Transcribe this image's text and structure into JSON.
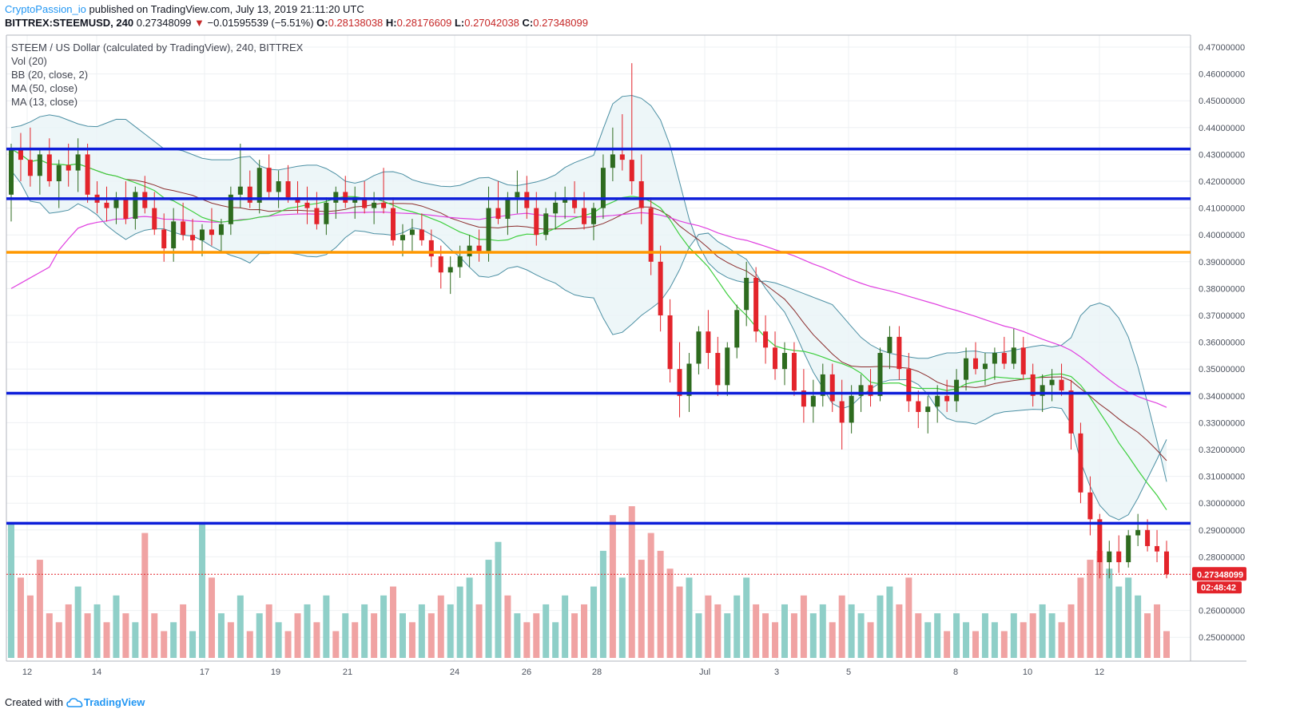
{
  "header": {
    "author": "CryptoPassion_io",
    "published": "published on TradingView.com, July 13, 2019 21:11:20 UTC",
    "symbol": "BITTREX:STEEMUSD, 240",
    "last": "0.27348099",
    "change": "−0.01595539 (−5.51%)",
    "o_label": "O:",
    "o": "0.28138038",
    "h_label": "H:",
    "h": "0.28176609",
    "l_label": "L:",
    "l": "0.27042038",
    "c_label": "C:",
    "c": "0.27348099"
  },
  "legend": [
    "STEEM / US Dollar (calculated by TradingView), 240, BITTREX",
    "Vol (20)",
    "BB (20, close, 2)",
    "MA (50, close)",
    "MA (13, close)"
  ],
  "footer": {
    "created": "Created with",
    "brand": "TradingView"
  },
  "colors": {
    "up": "#53b987",
    "up_body": "#2e6b1f",
    "down": "#eb4d5c",
    "down_body": "#e3242b",
    "vol_up": "#8fcfc8",
    "vol_down": "#f0a3a3",
    "bb": "#4b8fa3",
    "bb_fill": "#e8f4f6",
    "ma50": "#e040e0",
    "ma13": "#3ecf3e",
    "bb_mid": "#8b2d2d",
    "hline_blue": "#0d1ed9",
    "hline_orange": "#ff9800",
    "price_tag": "#e3242b"
  },
  "chart_data": {
    "type": "candlestick",
    "ylim": [
      0.245,
      0.47
    ],
    "yticks": [
      "0.47000000",
      "0.46000000",
      "0.45000000",
      "0.44000000",
      "0.43000000",
      "0.42000000",
      "0.41000000",
      "0.40000000",
      "0.39000000",
      "0.38000000",
      "0.37000000",
      "0.36000000",
      "0.35000000",
      "0.34000000",
      "0.33000000",
      "0.32000000",
      "0.31000000",
      "0.30000000",
      "0.29000000",
      "0.28000000",
      "0.26000000",
      "0.25000000"
    ],
    "xticks": [
      "12",
      "14",
      "17",
      "19",
      "21",
      "24",
      "26",
      "28",
      "Jul",
      "3",
      "5",
      "8",
      "10",
      "12"
    ],
    "horizontal_lines": [
      {
        "value": 0.432,
        "color": "blue"
      },
      {
        "value": 0.4135,
        "color": "blue"
      },
      {
        "value": 0.3935,
        "color": "orange"
      },
      {
        "value": 0.341,
        "color": "blue"
      },
      {
        "value": 0.2925,
        "color": "blue"
      }
    ],
    "last_price": "0.27348099",
    "countdown": "02:48:42",
    "ohlc": [
      [
        0.415,
        0.434,
        0.405,
        0.432
      ],
      [
        0.432,
        0.438,
        0.42,
        0.428
      ],
      [
        0.428,
        0.44,
        0.418,
        0.422
      ],
      [
        0.422,
        0.432,
        0.415,
        0.43
      ],
      [
        0.43,
        0.436,
        0.418,
        0.42
      ],
      [
        0.42,
        0.428,
        0.41,
        0.426
      ],
      [
        0.426,
        0.434,
        0.418,
        0.424
      ],
      [
        0.424,
        0.436,
        0.416,
        0.43
      ],
      [
        0.43,
        0.434,
        0.412,
        0.415
      ],
      [
        0.415,
        0.42,
        0.408,
        0.412
      ],
      [
        0.412,
        0.418,
        0.405,
        0.41
      ],
      [
        0.41,
        0.416,
        0.404,
        0.414
      ],
      [
        0.414,
        0.42,
        0.404,
        0.406
      ],
      [
        0.406,
        0.418,
        0.402,
        0.416
      ],
      [
        0.416,
        0.422,
        0.408,
        0.41
      ],
      [
        0.41,
        0.416,
        0.4,
        0.402
      ],
      [
        0.402,
        0.408,
        0.39,
        0.395
      ],
      [
        0.395,
        0.41,
        0.39,
        0.405
      ],
      [
        0.405,
        0.412,
        0.398,
        0.4
      ],
      [
        0.4,
        0.406,
        0.394,
        0.398
      ],
      [
        0.398,
        0.404,
        0.392,
        0.402
      ],
      [
        0.402,
        0.41,
        0.396,
        0.4
      ],
      [
        0.4,
        0.406,
        0.394,
        0.404
      ],
      [
        0.404,
        0.418,
        0.4,
        0.415
      ],
      [
        0.415,
        0.434,
        0.41,
        0.418
      ],
      [
        0.418,
        0.424,
        0.41,
        0.412
      ],
      [
        0.412,
        0.428,
        0.408,
        0.425
      ],
      [
        0.425,
        0.43,
        0.414,
        0.416
      ],
      [
        0.416,
        0.424,
        0.41,
        0.42
      ],
      [
        0.42,
        0.426,
        0.412,
        0.414
      ],
      [
        0.414,
        0.42,
        0.408,
        0.412
      ],
      [
        0.412,
        0.418,
        0.404,
        0.41
      ],
      [
        0.41,
        0.416,
        0.402,
        0.404
      ],
      [
        0.404,
        0.414,
        0.4,
        0.412
      ],
      [
        0.412,
        0.418,
        0.406,
        0.416
      ],
      [
        0.416,
        0.422,
        0.41,
        0.412
      ],
      [
        0.412,
        0.418,
        0.406,
        0.414
      ],
      [
        0.414,
        0.42,
        0.408,
        0.41
      ],
      [
        0.41,
        0.416,
        0.404,
        0.412
      ],
      [
        0.412,
        0.425,
        0.408,
        0.41
      ],
      [
        0.41,
        0.414,
        0.396,
        0.398
      ],
      [
        0.398,
        0.404,
        0.392,
        0.4
      ],
      [
        0.4,
        0.406,
        0.394,
        0.402
      ],
      [
        0.402,
        0.408,
        0.396,
        0.398
      ],
      [
        0.398,
        0.402,
        0.388,
        0.392
      ],
      [
        0.392,
        0.396,
        0.38,
        0.386
      ],
      [
        0.386,
        0.392,
        0.378,
        0.388
      ],
      [
        0.388,
        0.396,
        0.384,
        0.392
      ],
      [
        0.392,
        0.4,
        0.388,
        0.396
      ],
      [
        0.396,
        0.402,
        0.39,
        0.394
      ],
      [
        0.394,
        0.418,
        0.39,
        0.41
      ],
      [
        0.41,
        0.42,
        0.404,
        0.406
      ],
      [
        0.406,
        0.416,
        0.4,
        0.414
      ],
      [
        0.414,
        0.424,
        0.408,
        0.416
      ],
      [
        0.416,
        0.422,
        0.406,
        0.41
      ],
      [
        0.41,
        0.416,
        0.396,
        0.4
      ],
      [
        0.4,
        0.41,
        0.398,
        0.408
      ],
      [
        0.408,
        0.416,
        0.402,
        0.412
      ],
      [
        0.412,
        0.418,
        0.406,
        0.414
      ],
      [
        0.414,
        0.42,
        0.408,
        0.41
      ],
      [
        0.41,
        0.416,
        0.402,
        0.404
      ],
      [
        0.404,
        0.412,
        0.398,
        0.41
      ],
      [
        0.41,
        0.43,
        0.406,
        0.425
      ],
      [
        0.425,
        0.44,
        0.42,
        0.43
      ],
      [
        0.43,
        0.445,
        0.424,
        0.428
      ],
      [
        0.428,
        0.464,
        0.415,
        0.42
      ],
      [
        0.42,
        0.43,
        0.404,
        0.41
      ],
      [
        0.41,
        0.414,
        0.385,
        0.39
      ],
      [
        0.39,
        0.396,
        0.364,
        0.37
      ],
      [
        0.37,
        0.376,
        0.345,
        0.35
      ],
      [
        0.35,
        0.36,
        0.332,
        0.34
      ],
      [
        0.34,
        0.356,
        0.334,
        0.352
      ],
      [
        0.352,
        0.366,
        0.348,
        0.364
      ],
      [
        0.364,
        0.372,
        0.35,
        0.356
      ],
      [
        0.356,
        0.362,
        0.34,
        0.344
      ],
      [
        0.344,
        0.36,
        0.34,
        0.358
      ],
      [
        0.358,
        0.374,
        0.354,
        0.372
      ],
      [
        0.372,
        0.39,
        0.366,
        0.384
      ],
      [
        0.384,
        0.388,
        0.36,
        0.364
      ],
      [
        0.364,
        0.37,
        0.352,
        0.358
      ],
      [
        0.358,
        0.364,
        0.346,
        0.35
      ],
      [
        0.35,
        0.36,
        0.344,
        0.356
      ],
      [
        0.356,
        0.36,
        0.34,
        0.342
      ],
      [
        0.342,
        0.35,
        0.33,
        0.336
      ],
      [
        0.336,
        0.346,
        0.33,
        0.34
      ],
      [
        0.34,
        0.352,
        0.336,
        0.348
      ],
      [
        0.348,
        0.352,
        0.334,
        0.338
      ],
      [
        0.338,
        0.346,
        0.32,
        0.33
      ],
      [
        0.33,
        0.344,
        0.326,
        0.34
      ],
      [
        0.34,
        0.348,
        0.334,
        0.344
      ],
      [
        0.344,
        0.35,
        0.336,
        0.34
      ],
      [
        0.34,
        0.358,
        0.338,
        0.356
      ],
      [
        0.356,
        0.366,
        0.35,
        0.362
      ],
      [
        0.362,
        0.366,
        0.346,
        0.35
      ],
      [
        0.35,
        0.356,
        0.334,
        0.338
      ],
      [
        0.338,
        0.342,
        0.328,
        0.334
      ],
      [
        0.334,
        0.34,
        0.326,
        0.336
      ],
      [
        0.336,
        0.344,
        0.33,
        0.34
      ],
      [
        0.34,
        0.346,
        0.334,
        0.338
      ],
      [
        0.338,
        0.35,
        0.334,
        0.346
      ],
      [
        0.346,
        0.358,
        0.342,
        0.354
      ],
      [
        0.354,
        0.36,
        0.348,
        0.35
      ],
      [
        0.35,
        0.356,
        0.344,
        0.352
      ],
      [
        0.352,
        0.358,
        0.346,
        0.356
      ],
      [
        0.356,
        0.362,
        0.35,
        0.352
      ],
      [
        0.352,
        0.365,
        0.35,
        0.358
      ],
      [
        0.358,
        0.362,
        0.346,
        0.348
      ],
      [
        0.348,
        0.352,
        0.336,
        0.34
      ],
      [
        0.34,
        0.348,
        0.334,
        0.344
      ],
      [
        0.344,
        0.35,
        0.338,
        0.346
      ],
      [
        0.346,
        0.352,
        0.34,
        0.342
      ],
      [
        0.342,
        0.346,
        0.32,
        0.326
      ],
      [
        0.326,
        0.33,
        0.3,
        0.304
      ],
      [
        0.304,
        0.31,
        0.288,
        0.294
      ],
      [
        0.294,
        0.296,
        0.272,
        0.278
      ],
      [
        0.278,
        0.286,
        0.272,
        0.282
      ],
      [
        0.282,
        0.288,
        0.274,
        0.278
      ],
      [
        0.278,
        0.29,
        0.276,
        0.288
      ],
      [
        0.288,
        0.296,
        0.284,
        0.29
      ],
      [
        0.29,
        0.294,
        0.282,
        0.284
      ],
      [
        0.284,
        0.29,
        0.278,
        0.282
      ],
      [
        0.282,
        0.286,
        0.272,
        0.2735
      ]
    ],
    "volume": [
      [
        0.3,
        "up"
      ],
      [
        0.18,
        "down"
      ],
      [
        0.14,
        "down"
      ],
      [
        0.22,
        "down"
      ],
      [
        0.1,
        "down"
      ],
      [
        0.08,
        "down"
      ],
      [
        0.12,
        "down"
      ],
      [
        0.16,
        "up"
      ],
      [
        0.1,
        "down"
      ],
      [
        0.12,
        "up"
      ],
      [
        0.08,
        "down"
      ],
      [
        0.14,
        "up"
      ],
      [
        0.1,
        "down"
      ],
      [
        0.08,
        "up"
      ],
      [
        0.28,
        "down"
      ],
      [
        0.1,
        "down"
      ],
      [
        0.06,
        "down"
      ],
      [
        0.08,
        "up"
      ],
      [
        0.12,
        "down"
      ],
      [
        0.06,
        "up"
      ],
      [
        0.3,
        "up"
      ],
      [
        0.18,
        "down"
      ],
      [
        0.1,
        "up"
      ],
      [
        0.08,
        "down"
      ],
      [
        0.14,
        "up"
      ],
      [
        0.06,
        "down"
      ],
      [
        0.1,
        "up"
      ],
      [
        0.12,
        "down"
      ],
      [
        0.08,
        "up"
      ],
      [
        0.06,
        "down"
      ],
      [
        0.1,
        "down"
      ],
      [
        0.12,
        "up"
      ],
      [
        0.08,
        "down"
      ],
      [
        0.14,
        "up"
      ],
      [
        0.06,
        "down"
      ],
      [
        0.1,
        "up"
      ],
      [
        0.08,
        "down"
      ],
      [
        0.12,
        "up"
      ],
      [
        0.1,
        "down"
      ],
      [
        0.14,
        "up"
      ],
      [
        0.16,
        "down"
      ],
      [
        0.1,
        "up"
      ],
      [
        0.08,
        "down"
      ],
      [
        0.12,
        "up"
      ],
      [
        0.1,
        "down"
      ],
      [
        0.14,
        "down"
      ],
      [
        0.12,
        "up"
      ],
      [
        0.16,
        "up"
      ],
      [
        0.18,
        "up"
      ],
      [
        0.12,
        "down"
      ],
      [
        0.22,
        "up"
      ],
      [
        0.26,
        "up"
      ],
      [
        0.14,
        "down"
      ],
      [
        0.1,
        "up"
      ],
      [
        0.08,
        "down"
      ],
      [
        0.1,
        "down"
      ],
      [
        0.12,
        "up"
      ],
      [
        0.08,
        "up"
      ],
      [
        0.14,
        "up"
      ],
      [
        0.1,
        "down"
      ],
      [
        0.12,
        "down"
      ],
      [
        0.16,
        "up"
      ],
      [
        0.24,
        "up"
      ],
      [
        0.32,
        "down"
      ],
      [
        0.18,
        "up"
      ],
      [
        0.34,
        "down"
      ],
      [
        0.22,
        "down"
      ],
      [
        0.28,
        "down"
      ],
      [
        0.24,
        "down"
      ],
      [
        0.2,
        "down"
      ],
      [
        0.16,
        "down"
      ],
      [
        0.18,
        "up"
      ],
      [
        0.1,
        "up"
      ],
      [
        0.14,
        "down"
      ],
      [
        0.12,
        "down"
      ],
      [
        0.1,
        "up"
      ],
      [
        0.14,
        "up"
      ],
      [
        0.18,
        "up"
      ],
      [
        0.12,
        "down"
      ],
      [
        0.1,
        "down"
      ],
      [
        0.08,
        "down"
      ],
      [
        0.12,
        "up"
      ],
      [
        0.1,
        "down"
      ],
      [
        0.14,
        "down"
      ],
      [
        0.1,
        "up"
      ],
      [
        0.12,
        "up"
      ],
      [
        0.08,
        "down"
      ],
      [
        0.14,
        "down"
      ],
      [
        0.12,
        "up"
      ],
      [
        0.1,
        "up"
      ],
      [
        0.08,
        "down"
      ],
      [
        0.14,
        "up"
      ],
      [
        0.16,
        "up"
      ],
      [
        0.12,
        "down"
      ],
      [
        0.18,
        "down"
      ],
      [
        0.1,
        "down"
      ],
      [
        0.08,
        "up"
      ],
      [
        0.1,
        "up"
      ],
      [
        0.06,
        "down"
      ],
      [
        0.1,
        "up"
      ],
      [
        0.08,
        "up"
      ],
      [
        0.06,
        "down"
      ],
      [
        0.1,
        "up"
      ],
      [
        0.08,
        "up"
      ],
      [
        0.06,
        "down"
      ],
      [
        0.1,
        "up"
      ],
      [
        0.08,
        "down"
      ],
      [
        0.1,
        "down"
      ],
      [
        0.12,
        "up"
      ],
      [
        0.1,
        "up"
      ],
      [
        0.08,
        "down"
      ],
      [
        0.12,
        "down"
      ],
      [
        0.18,
        "down"
      ],
      [
        0.22,
        "down"
      ],
      [
        0.24,
        "down"
      ],
      [
        0.2,
        "up"
      ],
      [
        0.16,
        "up"
      ],
      [
        0.18,
        "up"
      ],
      [
        0.14,
        "up"
      ],
      [
        0.1,
        "down"
      ],
      [
        0.12,
        "down"
      ],
      [
        0.06,
        "down"
      ]
    ],
    "bb_upper_curve": [
      0.44,
      0.441,
      0.444,
      0.445,
      0.443,
      0.441,
      0.44,
      0.442,
      0.444,
      0.44,
      0.436,
      0.432,
      0.432,
      0.43,
      0.428,
      0.428,
      0.428,
      0.43,
      0.425,
      0.424,
      0.425,
      0.426,
      0.426,
      0.424,
      0.42,
      0.419,
      0.422,
      0.424,
      0.423,
      0.42,
      0.419,
      0.418,
      0.418,
      0.42,
      0.422,
      0.42,
      0.418,
      0.419,
      0.42,
      0.422,
      0.426,
      0.428,
      0.43,
      0.448,
      0.452,
      0.452,
      0.448,
      0.44,
      0.42,
      0.4,
      0.39,
      0.385,
      0.383,
      0.382,
      0.383,
      0.382,
      0.38,
      0.378,
      0.376,
      0.374,
      0.368,
      0.362,
      0.358,
      0.356,
      0.355,
      0.354,
      0.354,
      0.356,
      0.356,
      0.357,
      0.356,
      0.356,
      0.357,
      0.358,
      0.359,
      0.358,
      0.36,
      0.372,
      0.375,
      0.373,
      0.366,
      0.35,
      0.33,
      0.308
    ]
  }
}
